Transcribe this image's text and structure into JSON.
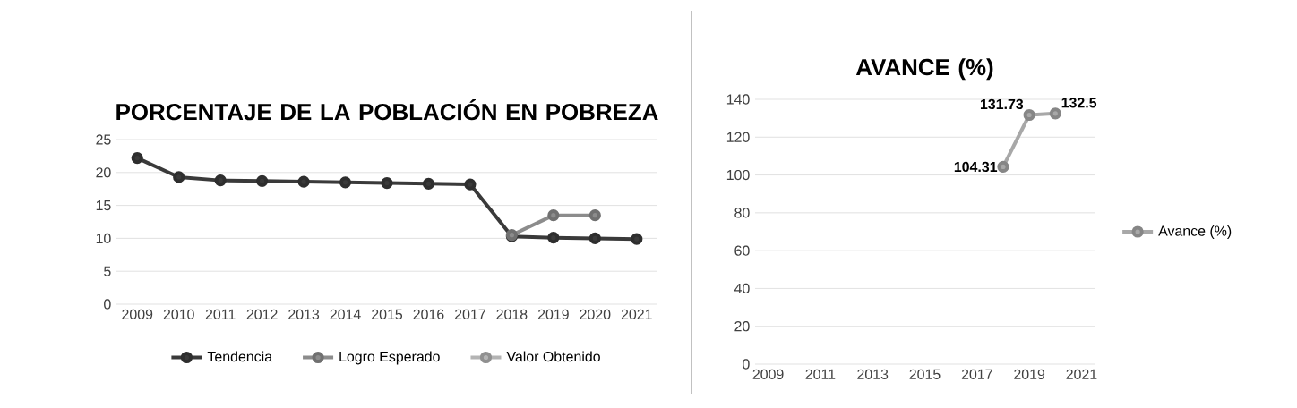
{
  "chart_data": [
    {
      "type": "line",
      "title": "PORCENTAJE DE LA POBLACIÓN EN POBREZA",
      "categories": [
        "2009",
        "2010",
        "2011",
        "2012",
        "2013",
        "2014",
        "2015",
        "2016",
        "2017",
        "2018",
        "2019",
        "2020",
        "2021"
      ],
      "series": [
        {
          "name": "Tendencia",
          "color": "#3a3a3a",
          "values": [
            22.2,
            19.3,
            18.8,
            18.7,
            18.6,
            18.5,
            18.4,
            18.3,
            18.2,
            10.3,
            10.1,
            10.0,
            9.9
          ]
        },
        {
          "name": "Logro Esperado",
          "color": "#8c8c8c",
          "values": [
            null,
            null,
            null,
            null,
            null,
            null,
            null,
            null,
            null,
            10.5,
            13.5,
            13.5,
            null
          ]
        },
        {
          "name": "Valor Obtenido",
          "color": "#b4b4b4",
          "values": [
            null,
            null,
            null,
            null,
            null,
            null,
            null,
            null,
            null,
            null,
            null,
            null,
            null
          ]
        }
      ],
      "ylim": [
        0,
        25
      ],
      "yticks": [
        0,
        5,
        10,
        15,
        20,
        25
      ],
      "grid": "y",
      "legend": "bottom",
      "marker": "circle"
    },
    {
      "type": "line",
      "title": "AVANCE (%)",
      "categories": [
        "2009",
        null,
        "2011",
        null,
        "2013",
        null,
        "2015",
        null,
        "2017",
        null,
        "2019",
        null,
        "2021"
      ],
      "series": [
        {
          "name": "Avance (%)",
          "color": "#a8a8a8",
          "values": [
            null,
            null,
            null,
            null,
            null,
            null,
            null,
            null,
            null,
            104.31,
            131.73,
            132.5,
            null
          ],
          "value_labels": [
            null,
            null,
            null,
            null,
            null,
            null,
            null,
            null,
            null,
            "104.31",
            "131.73",
            "132.5",
            null
          ]
        }
      ],
      "ylim": [
        0,
        140
      ],
      "yticks": [
        0,
        20,
        40,
        60,
        80,
        100,
        120,
        140
      ],
      "grid": "y",
      "legend": "right",
      "marker": "circle"
    }
  ]
}
